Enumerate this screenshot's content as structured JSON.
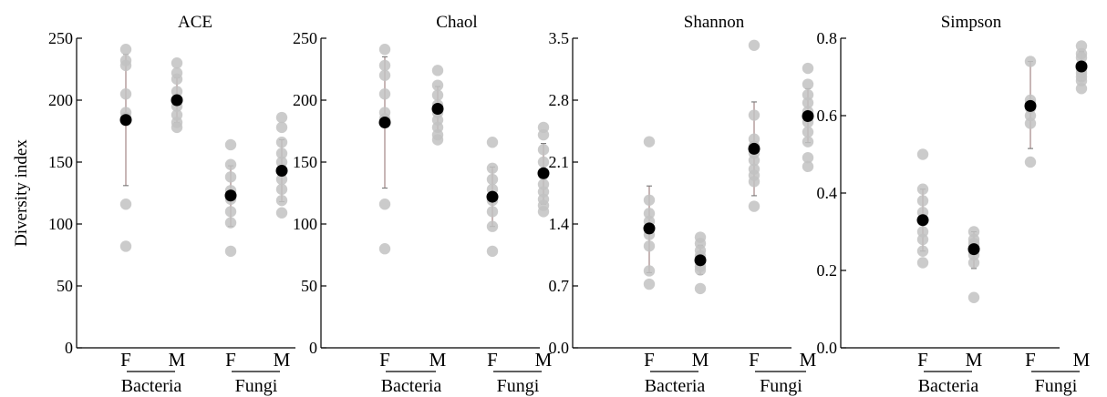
{
  "chart_data": [
    {
      "type": "scatter",
      "title": "ACE",
      "ylabel": "Diversity index",
      "ylim": [
        0,
        250
      ],
      "yticks": [
        "0",
        "50",
        "100",
        "150",
        "200",
        "250"
      ],
      "categories": [
        "F",
        "M",
        "F",
        "M"
      ],
      "groups": [
        "Bacteria",
        "Fungi"
      ],
      "points": [
        [
          241,
          232,
          228,
          205,
          190,
          186,
          116,
          82
        ],
        [
          230,
          222,
          217,
          207,
          200,
          195,
          188,
          182,
          178
        ],
        [
          164,
          148,
          138,
          127,
          120,
          110,
          101,
          78
        ],
        [
          186,
          178,
          166,
          157,
          150,
          143,
          136,
          128,
          119,
          109
        ]
      ],
      "means": [
        184,
        200,
        123,
        143
      ],
      "err_low": [
        131,
        182,
        98,
        118
      ],
      "err_high": [
        237,
        218,
        147,
        168
      ]
    },
    {
      "type": "scatter",
      "title": "Chaol",
      "ylabel": "",
      "ylim": [
        0,
        250
      ],
      "yticks": [
        "0",
        "50",
        "100",
        "150",
        "200",
        "250"
      ],
      "categories": [
        "F",
        "M",
        "F",
        "M"
      ],
      "groups": [
        "Bacteria",
        "Fungi"
      ],
      "points": [
        [
          241,
          228,
          220,
          205,
          190,
          185,
          116,
          80
        ],
        [
          224,
          212,
          204,
          196,
          190,
          184,
          178,
          172,
          168
        ],
        [
          166,
          145,
          136,
          128,
          119,
          110,
          98,
          78
        ],
        [
          178,
          172,
          160,
          150,
          140,
          132,
          126,
          120,
          115,
          110
        ]
      ],
      "means": [
        182,
        193,
        122,
        141
      ],
      "err_low": [
        129,
        175,
        98,
        116
      ],
      "err_high": [
        235,
        211,
        146,
        165
      ]
    },
    {
      "type": "scatter",
      "title": "Shannon",
      "ylabel": "",
      "ylim": [
        0,
        3.5
      ],
      "yticks": [
        "0.0",
        "0.7",
        "1.4",
        "2.1",
        "2.8",
        "3.5"
      ],
      "categories": [
        "F",
        "M",
        "F",
        "M"
      ],
      "groups": [
        "Bacteria",
        "Fungi"
      ],
      "points": [
        [
          2.33,
          1.67,
          1.52,
          1.43,
          1.35,
          1.28,
          1.15,
          0.87,
          0.72
        ],
        [
          1.25,
          1.18,
          1.1,
          1.04,
          0.98,
          0.92,
          0.88,
          0.67
        ],
        [
          3.42,
          2.63,
          2.36,
          2.28,
          2.2,
          2.12,
          2.02,
          1.95,
          1.88,
          1.6
        ],
        [
          3.16,
          2.98,
          2.86,
          2.77,
          2.67,
          2.55,
          2.44,
          2.33,
          2.15,
          2.05
        ]
      ],
      "means": [
        1.35,
        0.99,
        2.25,
        2.62
      ],
      "err_low": [
        0.85,
        0.83,
        1.72,
        2.32
      ],
      "err_high": [
        1.83,
        1.16,
        2.78,
        2.93
      ]
    },
    {
      "type": "scatter",
      "title": "Simpson",
      "ylabel": "",
      "ylim": [
        0,
        0.8
      ],
      "yticks": [
        "0.0",
        "0.2",
        "0.4",
        "0.6",
        "0.8"
      ],
      "categories": [
        "F",
        "M",
        "F",
        "M"
      ],
      "groups": [
        "Bacteria",
        "Fungi"
      ],
      "points": [
        [
          0.5,
          0.41,
          0.38,
          0.35,
          0.33,
          0.3,
          0.28,
          0.25,
          0.22
        ],
        [
          0.3,
          0.28,
          0.27,
          0.26,
          0.25,
          0.24,
          0.22,
          0.13
        ],
        [
          0.74,
          0.64,
          0.63,
          0.62,
          0.6,
          0.58,
          0.48
        ],
        [
          0.78,
          0.76,
          0.75,
          0.73,
          0.72,
          0.71,
          0.7,
          0.69,
          0.67
        ]
      ],
      "means": [
        0.33,
        0.255,
        0.625,
        0.727
      ],
      "err_low": [
        0.25,
        0.205,
        0.515,
        0.69
      ],
      "err_high": [
        0.41,
        0.3,
        0.74,
        0.765
      ]
    }
  ]
}
